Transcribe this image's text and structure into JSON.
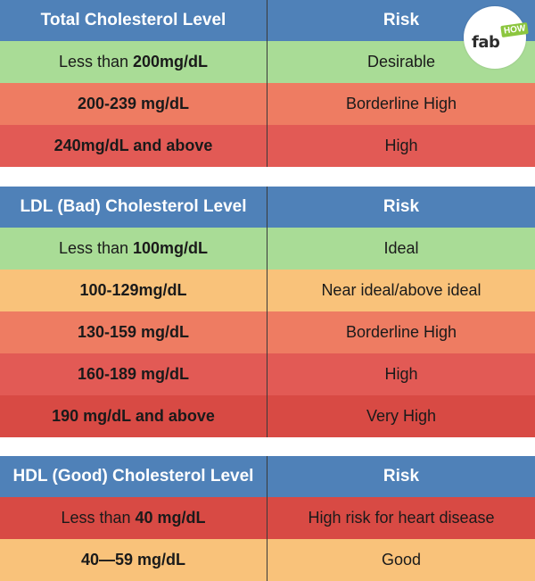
{
  "total": {
    "header_left": "Total Cholesterol Level",
    "header_right": "Risk",
    "rows": [
      {
        "pre": "Less than ",
        "level": "200mg/dL",
        "risk": "Desirable"
      },
      {
        "pre": "",
        "level": "200-239 mg/dL",
        "risk": "Borderline High"
      },
      {
        "pre": "",
        "level": "240mg/dL and above",
        "risk": "High"
      }
    ]
  },
  "ldl": {
    "header_left": "LDL (Bad) Cholesterol Level",
    "header_right": "Risk",
    "rows": [
      {
        "pre": "Less than ",
        "level": "100mg/dL",
        "risk": "Ideal"
      },
      {
        "pre": "",
        "level": "100-129mg/dL",
        "risk": "Near ideal/above ideal"
      },
      {
        "pre": "",
        "level": "130-159 mg/dL",
        "risk": "Borderline High"
      },
      {
        "pre": "",
        "level": "160-189 mg/dL",
        "risk": "High"
      },
      {
        "pre": "",
        "level": "190 mg/dL and above",
        "risk": "Very High"
      }
    ]
  },
  "hdl": {
    "header_left": "HDL (Good) Cholesterol Level",
    "header_right": "Risk",
    "rows": [
      {
        "pre": "Less than ",
        "level": "40 mg/dL",
        "risk": "High risk for heart disease"
      },
      {
        "pre": "",
        "level": "40—59 mg/dL",
        "risk": "Good"
      }
    ]
  },
  "logo": {
    "word": "fab",
    "badge": "HOW"
  },
  "colors": {
    "header": "#4f81b8",
    "desirable": "#a9dc96",
    "borderline": "#ee7c62",
    "high": "#e25a55",
    "very_high": "#d84a44",
    "near_ideal": "#f9c27a"
  }
}
